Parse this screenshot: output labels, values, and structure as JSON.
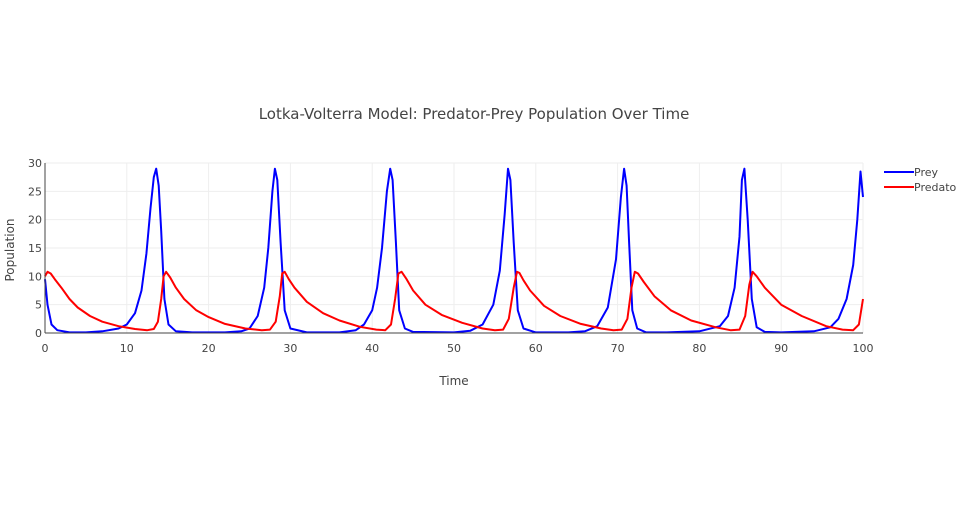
{
  "chart_data": {
    "type": "line",
    "title": "Lotka-Volterra Model: Predator-Prey Population Over Time",
    "xlabel": "Time",
    "ylabel": "Population",
    "xlim": [
      0,
      100
    ],
    "ylim": [
      0,
      30
    ],
    "x_ticks": [
      0,
      10,
      20,
      30,
      40,
      50,
      60,
      70,
      80,
      90,
      100
    ],
    "y_ticks": [
      0,
      5,
      10,
      15,
      20,
      25,
      30
    ],
    "grid": true,
    "legend_position": "top-right",
    "series": [
      {
        "name": "Prey",
        "color": "#0000ff",
        "x": [
          0,
          0.3,
          0.8,
          1.5,
          3,
          5,
          7,
          9,
          10,
          11,
          11.8,
          12.4,
          12.9,
          13.3,
          13.6,
          13.9,
          14.2,
          14.6,
          15.1,
          16,
          18,
          22,
          24,
          25,
          26,
          26.8,
          27.3,
          27.8,
          28.1,
          28.4,
          28.8,
          29.3,
          30,
          32,
          36,
          38,
          39,
          40,
          40.6,
          41.2,
          41.8,
          42.2,
          42.5,
          42.9,
          43.3,
          44,
          45,
          50,
          52,
          53.5,
          54.8,
          55.6,
          56.2,
          56.6,
          56.9,
          57.3,
          57.8,
          58.5,
          60,
          64,
          66,
          67.5,
          68.8,
          69.8,
          70.4,
          70.8,
          71.1,
          71.4,
          71.8,
          72.4,
          73.5,
          76,
          80,
          82.5,
          83.5,
          84.3,
          84.9,
          85.2,
          85.5,
          85.9,
          86.4,
          87,
          88,
          90,
          94,
          96,
          97,
          98,
          98.8,
          99.3,
          99.7,
          100
        ],
        "values": [
          9.5,
          5.0,
          1.5,
          0.5,
          0.1,
          0.1,
          0.3,
          0.8,
          1.5,
          3.5,
          7.5,
          14.0,
          22.0,
          27.5,
          29.0,
          26.0,
          18.0,
          6.0,
          1.5,
          0.3,
          0.1,
          0.1,
          0.3,
          0.8,
          3.0,
          8.0,
          15.0,
          25.0,
          29.0,
          27.0,
          16.0,
          4.0,
          0.8,
          0.1,
          0.1,
          0.5,
          1.5,
          4.0,
          8.0,
          15.0,
          25.0,
          29.0,
          27.0,
          16.0,
          4.0,
          0.8,
          0.2,
          0.1,
          0.4,
          1.5,
          5.0,
          11.0,
          21.0,
          29.0,
          27.0,
          16.0,
          4.0,
          0.8,
          0.1,
          0.1,
          0.3,
          1.2,
          4.5,
          13.0,
          24.0,
          29.0,
          26.0,
          16.0,
          4.0,
          0.8,
          0.1,
          0.1,
          0.3,
          1.2,
          3.0,
          8.0,
          17.0,
          27.0,
          29.0,
          20.0,
          6.0,
          1.0,
          0.2,
          0.1,
          0.3,
          1.0,
          2.5,
          6.0,
          12.0,
          20.0,
          28.5,
          24.0
        ]
      },
      {
        "name": "Predator",
        "color": "#ff0000",
        "x": [
          0,
          0.3,
          0.7,
          1.2,
          2,
          3,
          4,
          5.5,
          7,
          9,
          11,
          12.5,
          13.3,
          13.8,
          14.2,
          14.5,
          14.8,
          15.3,
          16,
          17,
          18.5,
          20,
          22,
          24.5,
          26.5,
          27.5,
          28.2,
          28.7,
          29,
          29.3,
          29.8,
          30.5,
          32,
          34,
          36,
          38.5,
          40.5,
          41.6,
          42.3,
          42.8,
          43.2,
          43.6,
          44.2,
          45,
          46.5,
          48.5,
          51,
          53.5,
          55,
          56,
          56.7,
          57.3,
          57.7,
          58,
          58.5,
          59.3,
          61,
          63,
          65.5,
          68,
          69.5,
          70.5,
          71.2,
          71.7,
          72.1,
          72.5,
          73.2,
          74.5,
          76.5,
          79,
          82,
          83.8,
          84.9,
          85.6,
          86.1,
          86.5,
          87,
          88,
          90,
          92.5,
          95.5,
          97.5,
          98.8,
          99.5,
          100
        ],
        "values": [
          10.0,
          10.8,
          10.5,
          9.5,
          8.0,
          6.0,
          4.5,
          3.0,
          2.0,
          1.2,
          0.7,
          0.5,
          0.7,
          2.0,
          6.0,
          10.0,
          10.8,
          9.8,
          8.0,
          6.0,
          4.0,
          2.8,
          1.6,
          0.8,
          0.5,
          0.6,
          2.0,
          6.5,
          10.5,
          10.8,
          9.5,
          8.0,
          5.5,
          3.5,
          2.2,
          1.1,
          0.6,
          0.5,
          1.5,
          6.0,
          10.5,
          10.8,
          9.5,
          7.5,
          5.0,
          3.2,
          1.8,
          0.8,
          0.5,
          0.6,
          2.5,
          8.0,
          10.8,
          10.6,
          9.3,
          7.5,
          4.8,
          3.0,
          1.6,
          0.8,
          0.5,
          0.6,
          2.5,
          8.0,
          10.8,
          10.5,
          9.0,
          6.5,
          4.0,
          2.2,
          1.0,
          0.5,
          0.6,
          3.0,
          8.5,
          10.8,
          10.0,
          8.0,
          5.0,
          3.0,
          1.2,
          0.6,
          0.5,
          1.5,
          6.0
        ]
      }
    ]
  }
}
